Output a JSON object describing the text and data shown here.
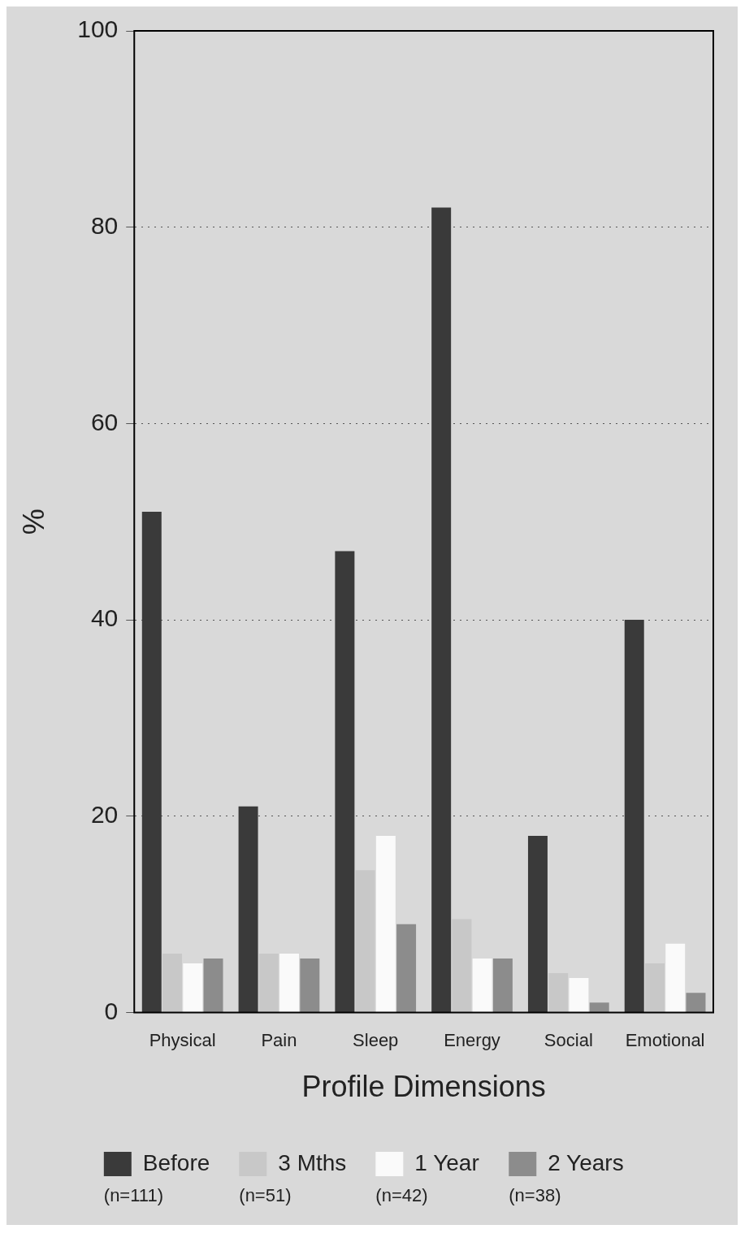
{
  "chart_data": {
    "type": "bar",
    "xlabel": "Profile Dimensions",
    "ylabel": "%",
    "categories": [
      "Physical",
      "Pain",
      "Sleep",
      "Energy",
      "Social",
      "Emotional"
    ],
    "series": [
      {
        "name": "Before",
        "color": "#3a3a3a",
        "values": [
          51,
          21,
          47,
          82,
          18,
          40
        ]
      },
      {
        "name": "3 Mths",
        "color": "#c8c8c8",
        "values": [
          6,
          6,
          14.5,
          9.5,
          4,
          5
        ]
      },
      {
        "name": "1 Year",
        "color": "#fafafa",
        "values": [
          5,
          6,
          18,
          5.5,
          3.5,
          7
        ]
      },
      {
        "name": "2 Years",
        "color": "#8c8c8c",
        "values": [
          5.5,
          5.5,
          9,
          5.5,
          1,
          2
        ]
      }
    ],
    "annotations": [
      "(n=111)",
      "(n=51)",
      "(n=42)",
      "(n=38)"
    ],
    "ylim": [
      0,
      100
    ],
    "yticks": [
      0,
      20,
      40,
      60,
      80,
      100
    ],
    "grid": "y",
    "legend": "bottom"
  }
}
